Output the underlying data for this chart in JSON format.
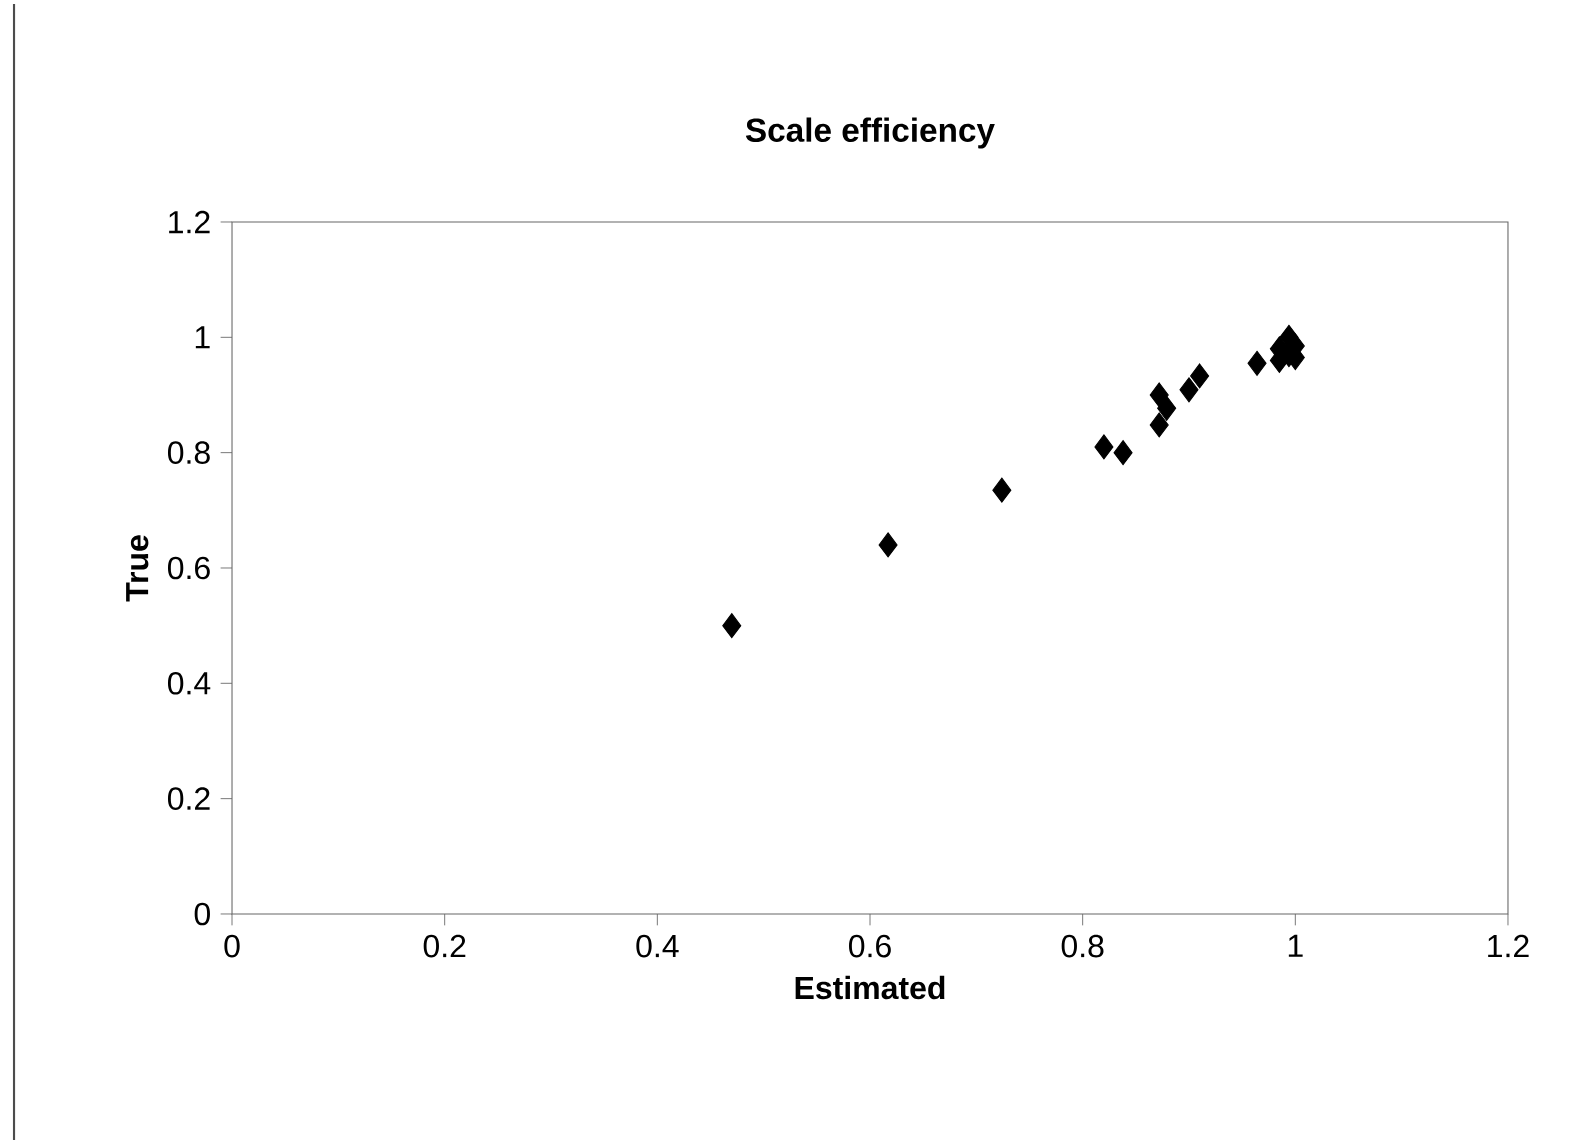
{
  "chart_data": {
    "type": "scatter",
    "title": "Scale efficiency",
    "xlabel": "Estimated",
    "ylabel": "True",
    "x": [
      0.47,
      0.617,
      0.724,
      0.82,
      0.838,
      0.872,
      0.879,
      0.872,
      0.9,
      0.91,
      0.964,
      0.985,
      0.985,
      0.994,
      1.0,
      1.0,
      0.994
    ],
    "values": [
      0.5,
      0.64,
      0.735,
      0.81,
      0.8,
      0.848,
      0.877,
      0.9,
      0.909,
      0.933,
      0.955,
      0.96,
      0.98,
      1.0,
      0.985,
      0.965,
      0.97
    ],
    "color": "#000000",
    "marker": "diamond",
    "xlim": [
      0,
      1.2
    ],
    "ylim": [
      0,
      1.2
    ],
    "xticks": [
      0,
      0.2,
      0.4,
      0.6,
      0.8,
      1,
      1.2
    ],
    "yticks": [
      0,
      0.2,
      0.4,
      0.6,
      0.8,
      1,
      1.2
    ],
    "grid": false,
    "legend": false
  }
}
